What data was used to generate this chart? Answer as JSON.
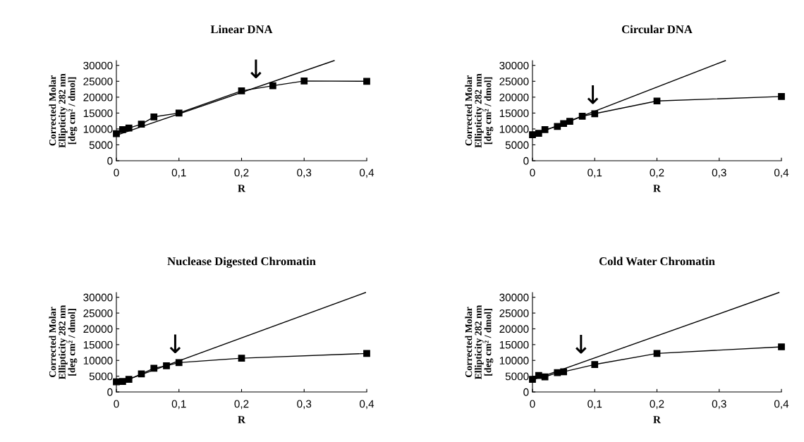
{
  "chart_data": [
    {
      "type": "line",
      "title": "Linear DNA",
      "xlabel": "R",
      "ylabel": "Corrected Molar\nEllipticity 282 nm\n[deg cm² / dmol]",
      "marker": "square",
      "grid": false,
      "xlim": [
        0,
        0.4
      ],
      "xticks": [
        0,
        {
          "value": 0.1,
          "label": "0,1"
        },
        {
          "value": 0.2,
          "label": "0,2"
        },
        {
          "value": 0.3,
          "label": "0,3"
        },
        {
          "value": 0.4,
          "label": "0,4"
        }
      ],
      "ylim": [
        0,
        31500
      ],
      "yticks": [
        0,
        5000,
        10000,
        15000,
        20000,
        25000,
        30000
      ],
      "series": [
        {
          "color": "#000000",
          "x": [
            0,
            0.01,
            0.02,
            0.04,
            0.06,
            0.1,
            0.2,
            0.25,
            0.3,
            0.4
          ],
          "values": [
            8500,
            9800,
            10300,
            11500,
            13800,
            15000,
            22000,
            23600,
            25100,
            25000
          ]
        },
        {
          "color": "#000000",
          "marker": "none",
          "x": [
            0,
            0.348
          ],
          "values": [
            8000,
            31500
          ]
        }
      ],
      "annotations": [
        {
          "text": "↓",
          "x": 0.223,
          "y": 23100
        }
      ]
    },
    {
      "type": "line",
      "title": "Circular DNA",
      "xlabel": "R",
      "ylabel": "Corrected Molar\nEllipticity 282 nm\n[deg cm² / dmol]",
      "marker": "square",
      "grid": false,
      "xlim": [
        0,
        0.4
      ],
      "xticks": [
        0,
        {
          "value": 0.1,
          "label": "0,1"
        },
        {
          "value": 0.2,
          "label": "0,2"
        },
        {
          "value": 0.3,
          "label": "0,3"
        },
        {
          "value": 0.4,
          "label": "0,4"
        }
      ],
      "ylim": [
        0,
        31500
      ],
      "yticks": [
        0,
        5000,
        10000,
        15000,
        20000,
        25000,
        30000
      ],
      "series": [
        {
          "color": "#000000",
          "x": [
            0,
            0.01,
            0.02,
            0.04,
            0.05,
            0.06,
            0.08,
            0.1,
            0.2,
            0.4
          ],
          "values": [
            8200,
            8600,
            9800,
            10800,
            11700,
            12400,
            14000,
            14800,
            18800,
            20200
          ]
        },
        {
          "color": "#000000",
          "marker": "none",
          "x": [
            0,
            0.31
          ],
          "values": [
            8000,
            31500
          ]
        }
      ],
      "annotations": [
        {
          "text": "↓",
          "x": 0.097,
          "y": 15000
        }
      ]
    },
    {
      "type": "line",
      "title": "Nuclease Digested Chromatin",
      "xlabel": "R",
      "ylabel": "Corrected Molar\nEllipticity 282 nm\n[deg cm² / dmol]",
      "marker": "square",
      "grid": false,
      "xlim": [
        0,
        0.4
      ],
      "xticks": [
        0,
        {
          "value": 0.1,
          "label": "0,1"
        },
        {
          "value": 0.2,
          "label": "0,2"
        },
        {
          "value": 0.3,
          "label": "0,3"
        },
        {
          "value": 0.4,
          "label": "0,4"
        }
      ],
      "ylim": [
        0,
        31500
      ],
      "yticks": [
        0,
        5000,
        10000,
        15000,
        20000,
        25000,
        30000
      ],
      "series": [
        {
          "color": "#000000",
          "x": [
            0,
            0.01,
            0.02,
            0.04,
            0.06,
            0.08,
            0.1,
            0.2,
            0.4
          ],
          "values": [
            3200,
            3300,
            4000,
            5700,
            7500,
            8300,
            9300,
            10700,
            12200
          ]
        },
        {
          "color": "#000000",
          "marker": "none",
          "x": [
            0,
            0.398
          ],
          "values": [
            2600,
            31500
          ]
        }
      ],
      "annotations": [
        {
          "text": "↓",
          "x": 0.094,
          "y": 9400
        }
      ]
    },
    {
      "type": "line",
      "title": "Cold Water Chromatin",
      "xlabel": "R",
      "ylabel": "Corrected Molar\nEllipticity 282 nm\n[deg cm² / dmol]",
      "marker": "square",
      "grid": false,
      "xlim": [
        0,
        0.4
      ],
      "xticks": [
        0,
        {
          "value": 0.1,
          "label": "0,1"
        },
        {
          "value": 0.2,
          "label": "0,2"
        },
        {
          "value": 0.3,
          "label": "0,3"
        },
        {
          "value": 0.4,
          "label": "0,4"
        }
      ],
      "ylim": [
        0,
        31500
      ],
      "yticks": [
        0,
        5000,
        10000,
        15000,
        20000,
        25000,
        30000
      ],
      "series": [
        {
          "color": "#000000",
          "x": [
            0,
            0.01,
            0.02,
            0.04,
            0.05,
            0.1,
            0.2,
            0.4
          ],
          "values": [
            4000,
            5200,
            4800,
            6100,
            6400,
            8700,
            12200,
            14300
          ]
        },
        {
          "color": "#000000",
          "marker": "none",
          "x": [
            0,
            0.396
          ],
          "values": [
            3800,
            31500
          ]
        }
      ],
      "annotations": [
        {
          "text": "↓",
          "x": 0.078,
          "y": 9300
        }
      ]
    }
  ]
}
